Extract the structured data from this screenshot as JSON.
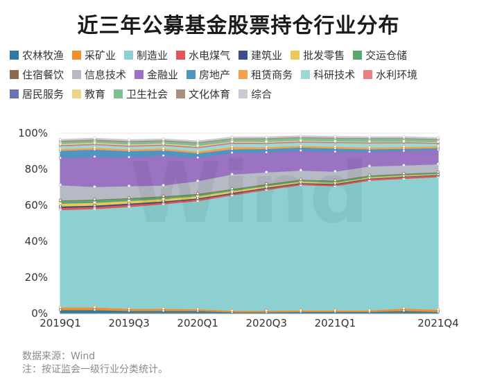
{
  "title": "近三年公募基金股票持仓行业分布",
  "footer": {
    "source": "数据来源：Wind",
    "note": "注：按证监会一级行业分类统计。"
  },
  "watermark": "Wind",
  "chart_data": {
    "type": "area",
    "stacked": true,
    "title": "近三年公募基金股票持仓行业分布",
    "x": [
      "2019Q1",
      "2019Q2",
      "2019Q3",
      "2019Q4",
      "2020Q1",
      "2020Q2",
      "2020Q3",
      "2020Q4",
      "2021Q1",
      "2021Q2",
      "2021Q3",
      "2021Q4"
    ],
    "x_tick_labels": [
      "2019Q1",
      "2019Q3",
      "2020Q1",
      "2020Q3",
      "2021Q1",
      "2021Q4"
    ],
    "y_tick_labels": [
      "0%",
      "20%",
      "40%",
      "60%",
      "80%",
      "100%"
    ],
    "ylim": [
      0,
      100
    ],
    "legend_position": "top",
    "series": [
      {
        "name": "农林牧渔",
        "color": "#2e7aa0",
        "values": [
          2.0,
          2.0,
          1.5,
          1.5,
          1.5,
          0.8,
          0.8,
          1.0,
          1.0,
          1.0,
          1.5,
          1.0
        ]
      },
      {
        "name": "采矿业",
        "color": "#f28e2b",
        "values": [
          1.5,
          1.5,
          1.2,
          1.2,
          1.0,
          0.8,
          0.8,
          0.8,
          0.8,
          0.8,
          1.3,
          1.2
        ]
      },
      {
        "name": "制造业",
        "color": "#8dd0d1",
        "values": [
          54.0,
          54.5,
          56.5,
          58.0,
          60.0,
          64.0,
          67.0,
          69.5,
          69.0,
          72.0,
          72.0,
          73.5
        ]
      },
      {
        "name": "水电煤气",
        "color": "#e15759",
        "values": [
          1.2,
          1.2,
          1.2,
          1.0,
          1.0,
          0.9,
          0.9,
          0.8,
          0.8,
          0.9,
          1.0,
          1.0
        ]
      },
      {
        "name": "建筑业",
        "color": "#3b4d8a",
        "values": [
          0.8,
          0.8,
          0.7,
          0.6,
          0.5,
          0.5,
          0.4,
          0.4,
          0.4,
          0.3,
          0.3,
          0.3
        ]
      },
      {
        "name": "批发零售",
        "color": "#e9c85c",
        "values": [
          1.5,
          1.5,
          1.4,
          1.3,
          1.2,
          1.0,
          0.9,
          0.8,
          0.7,
          0.6,
          0.6,
          0.5
        ]
      },
      {
        "name": "交运仓储",
        "color": "#59a86f",
        "values": [
          1.5,
          1.5,
          1.3,
          1.2,
          1.0,
          0.9,
          0.8,
          0.8,
          0.8,
          0.8,
          0.7,
          0.6
        ]
      },
      {
        "name": "住宿餐饮",
        "color": "#8b6a4e",
        "values": [
          0.3,
          0.3,
          0.3,
          0.3,
          0.3,
          0.3,
          0.3,
          0.3,
          0.3,
          0.3,
          0.3,
          0.3
        ]
      },
      {
        "name": "信息技术",
        "color": "#b5bac4",
        "values": [
          8.5,
          7.0,
          6.6,
          6.0,
          7.0,
          8.0,
          6.5,
          5.0,
          5.0,
          5.0,
          4.5,
          4.5
        ]
      },
      {
        "name": "金融业",
        "color": "#9a74c3",
        "values": [
          15.0,
          16.7,
          16.0,
          16.5,
          13.0,
          12.0,
          11.0,
          11.0,
          11.0,
          8.0,
          8.0,
          8.0
        ]
      },
      {
        "name": "房地产",
        "color": "#4e95c4",
        "values": [
          4.0,
          4.0,
          3.5,
          3.0,
          2.5,
          2.0,
          2.0,
          1.8,
          1.8,
          1.5,
          1.3,
          1.0
        ]
      },
      {
        "name": "租赁商务",
        "color": "#f5a14b",
        "values": [
          1.0,
          1.0,
          1.0,
          1.0,
          1.0,
          1.3,
          1.0,
          0.9,
          1.0,
          1.0,
          1.0,
          1.0
        ]
      },
      {
        "name": "科研技术",
        "color": "#9bd8d6",
        "values": [
          1.5,
          1.5,
          1.4,
          1.5,
          1.8,
          1.7,
          1.8,
          1.8,
          2.0,
          2.2,
          2.0,
          1.4
        ]
      },
      {
        "name": "水利环境",
        "color": "#e98080",
        "values": [
          0.5,
          0.5,
          0.5,
          0.5,
          0.5,
          0.5,
          0.4,
          0.4,
          0.4,
          0.4,
          0.4,
          0.3
        ]
      },
      {
        "name": "居民服务",
        "color": "#6b74b2",
        "values": [
          0.2,
          0.2,
          0.2,
          0.2,
          0.2,
          0.2,
          0.2,
          0.2,
          0.2,
          0.2,
          0.2,
          0.2
        ]
      },
      {
        "name": "教育",
        "color": "#ead588",
        "values": [
          0.6,
          0.6,
          0.6,
          0.6,
          0.6,
          0.5,
          0.5,
          0.5,
          0.4,
          0.4,
          0.4,
          0.4
        ]
      },
      {
        "name": "卫生社会",
        "color": "#7fbf95",
        "values": [
          1.0,
          1.0,
          1.1,
          1.1,
          1.4,
          1.3,
          1.5,
          1.5,
          1.5,
          1.6,
          1.5,
          1.3
        ]
      },
      {
        "name": "文化体育",
        "color": "#a89080",
        "values": [
          0.9,
          0.9,
          0.8,
          0.8,
          0.7,
          0.6,
          0.6,
          0.5,
          0.5,
          0.5,
          0.5,
          0.5
        ]
      },
      {
        "name": "综合",
        "color": "#c8ccd2",
        "values": [
          0.5,
          0.5,
          0.5,
          0.5,
          0.5,
          0.5,
          0.5,
          0.5,
          0.5,
          0.5,
          0.5,
          0.5
        ]
      }
    ]
  }
}
